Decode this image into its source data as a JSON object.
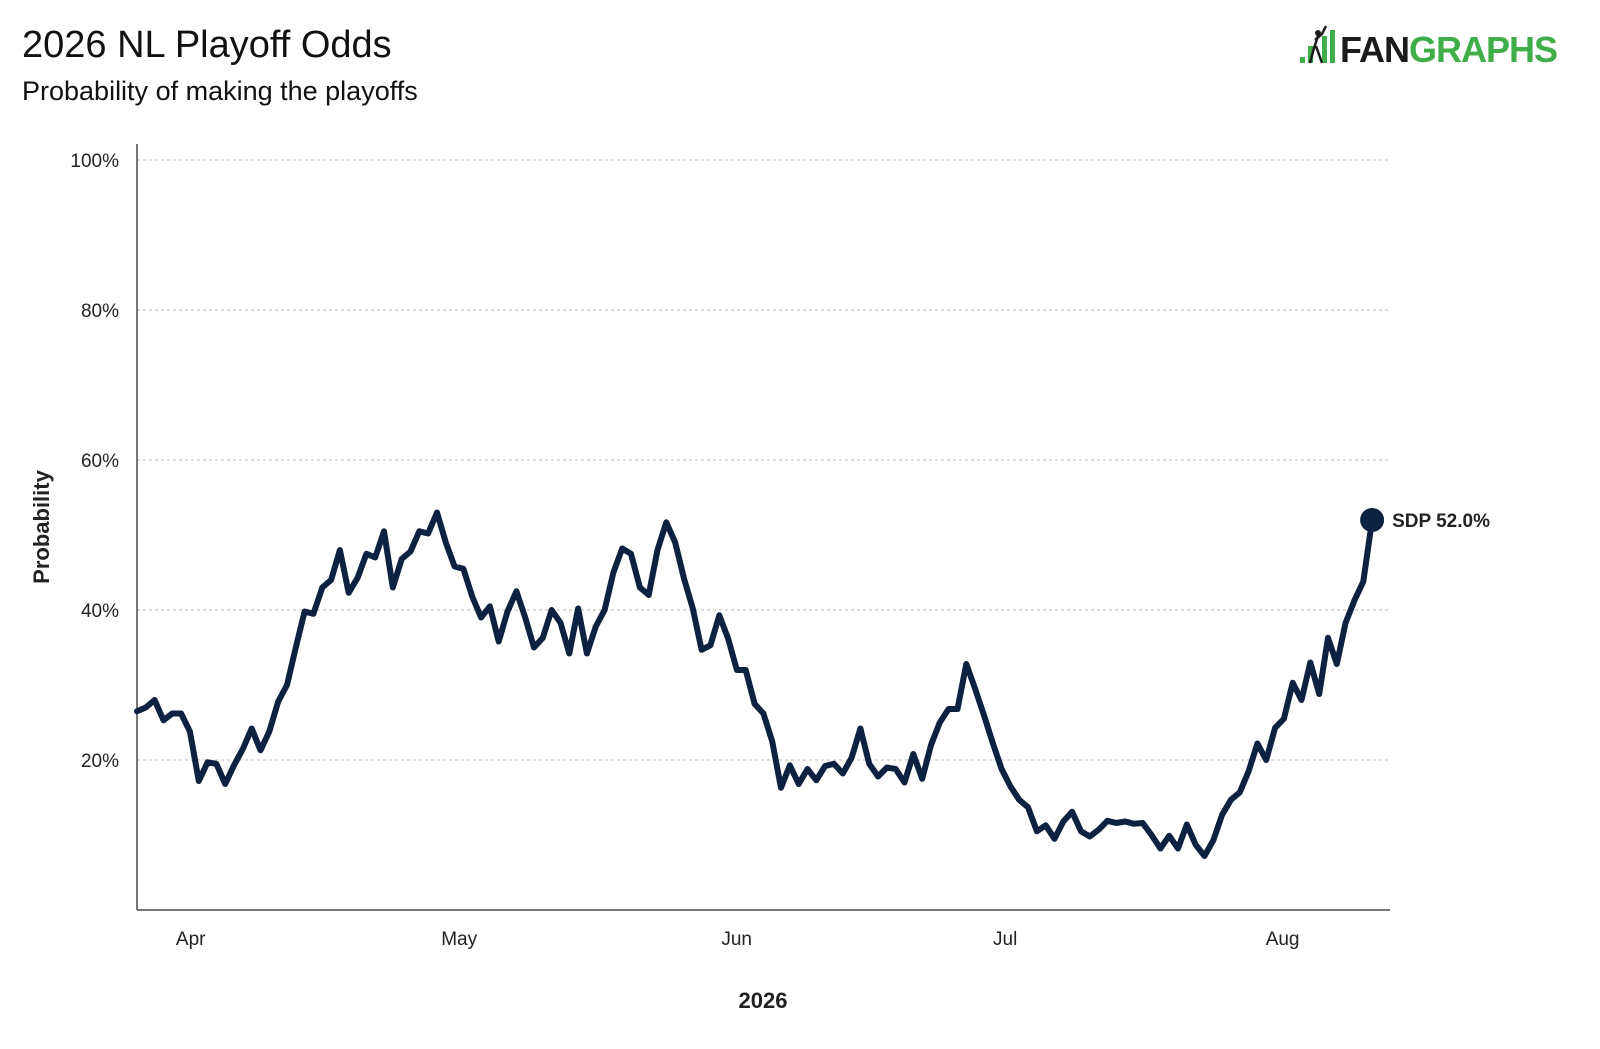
{
  "header": {
    "title": "2026 NL Playoff Odds",
    "subtitle": "Probability of making the playoffs",
    "logo_text_dark": "FAN",
    "logo_text_green": "GRAPHS"
  },
  "colors": {
    "line": "#0d2240",
    "grid": "#bbbbbb",
    "axis": "#777777",
    "logo_green": "#3fae49",
    "logo_dark": "#1b1b1b"
  },
  "chart_data": {
    "type": "line",
    "title": "2026 NL Playoff Odds",
    "subtitle": "Probability of making the playoffs",
    "xlabel": "2026",
    "ylabel": "Probability",
    "x_start": "2026-03-26",
    "x_end": "2026-08-11",
    "xlim": [
      "2026-03-26",
      "2026-08-13"
    ],
    "ylim": [
      0,
      100
    ],
    "y_ticks": [
      20,
      40,
      60,
      80,
      100
    ],
    "y_tick_labels": [
      "20%",
      "40%",
      "60%",
      "80%",
      "100%"
    ],
    "x_ticks": [
      "2026-04-01",
      "2026-05-01",
      "2026-06-01",
      "2026-07-01",
      "2026-08-01"
    ],
    "x_tick_labels": [
      "Apr",
      "May",
      "Jun",
      "Jul",
      "Aug"
    ],
    "grid": true,
    "series": [
      {
        "name": "SDP",
        "end_label": "SDP 52.0%",
        "values": [
          26.5,
          27,
          28,
          25.3,
          26.2,
          26.2,
          23.8,
          17.2,
          19.7,
          19.5,
          16.8,
          19.3,
          21.5,
          24.2,
          21.3,
          23.8,
          27.8,
          30,
          35,
          39.8,
          39.5,
          43,
          44,
          48,
          42.3,
          44.3,
          47.5,
          47,
          50.5,
          43,
          46.8,
          47.8,
          50.5,
          50.2,
          53,
          49,
          45.8,
          45.5,
          41.8,
          39,
          40.5,
          35.8,
          39.8,
          42.5,
          39,
          35,
          36.3,
          40,
          38.3,
          34.2,
          40.2,
          34.2,
          37.8,
          40,
          45,
          48.2,
          47.5,
          43,
          42,
          48,
          51.7,
          49,
          44.2,
          40.2,
          34.7,
          35.3,
          39.3,
          36.2,
          32,
          32,
          27.5,
          26.2,
          22.5,
          16.3,
          19.3,
          16.8,
          18.8,
          17.3,
          19.2,
          19.5,
          18.2,
          20.3,
          24.2,
          19.5,
          17.8,
          19,
          18.8,
          17,
          20.8,
          17.5,
          22,
          25,
          26.8,
          26.8,
          32.8,
          29.5,
          26,
          22.3,
          18.8,
          16.5,
          14.7,
          13.7,
          10.5,
          11.3,
          9.5,
          11.8,
          13.1,
          10.5,
          9.8,
          10.7,
          11.9,
          11.6,
          11.8,
          11.5,
          11.6,
          10,
          8.2,
          9.9,
          8.2,
          11.4,
          8.7,
          7.2,
          9.3,
          12.7,
          14.7,
          15.7,
          18.5,
          22.2,
          20,
          24.3,
          25.5,
          30.3,
          28,
          33,
          28.8,
          36.3,
          32.8,
          38.3,
          41.3,
          43.8,
          52.0
        ]
      }
    ]
  }
}
